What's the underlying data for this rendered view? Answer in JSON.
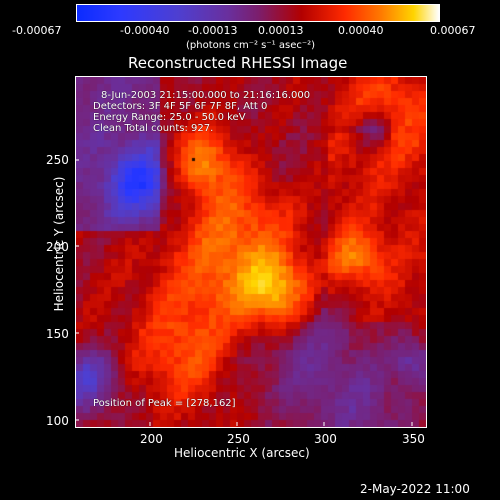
{
  "colorbar": {
    "tick_labels": [
      "-0.00067",
      "-0.00040",
      "-0.00013",
      "0.00013",
      "0.00040",
      "0.00067"
    ],
    "units_label": "(photons cm⁻² s⁻¹ asec⁻²)",
    "colors": [
      "#0b2bff",
      "#2d3aff",
      "#4e3fd0",
      "#6a2f9c",
      "#7b1e6d",
      "#b20000",
      "#ff2a00",
      "#ff7a00",
      "#ffd400",
      "#ffffff"
    ]
  },
  "image": {
    "title": "Reconstructed RHESSI Image",
    "overlay_lines": [
      "8-Jun-2003 21:15:00.000 to 21:16:16.000",
      "Detectors: 3F 4F 5F 6F 7F 8F, Att 0",
      "Energy Range: 25.0 - 50.0 keV",
      "Clean    Total counts: 927."
    ],
    "peak_text": "Position of Peak = [278,162]"
  },
  "axes": {
    "xlabel": "Heliocentric X (arcsec)",
    "ylabel": "Heliocentric Y (arcsec)",
    "x_ticks": [
      "200",
      "250",
      "300",
      "350"
    ],
    "y_ticks": [
      "100",
      "150",
      "200",
      "250"
    ]
  },
  "footer": {
    "timestamp": "2-May-2022 11:00"
  }
}
